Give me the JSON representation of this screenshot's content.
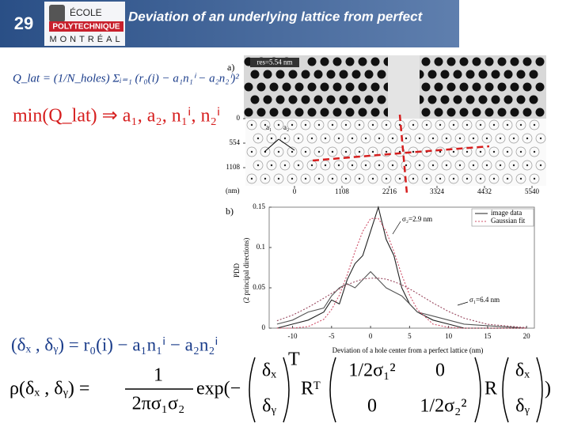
{
  "header": {
    "slide_number": "29",
    "logo": {
      "line1": "ÉCOLE",
      "line2": "POLYTECHNIQUE",
      "line3": "MONTRÉAL"
    },
    "title": "Deviation of an underlying lattice from perfect"
  },
  "equations": {
    "q_lat": "Q_lat = (1/N_holes) Σᵢ₌₁ (r₀(i) − a₁n₁ⁱ − a₂n₂ⁱ)²",
    "minimize": "min(Q_lat) ⇒ a₁, a₂, n₁ⁱ, n₂ⁱ",
    "deviation": "(δₓ , δᵧ) = r₀(i) − a₁n₁ⁱ − a₂n₂ⁱ",
    "rho": {
      "lhs": "ρ(δₓ , δᵧ) =",
      "numerator": "1",
      "denominator": "2πσ₁σ₂",
      "exp": "exp(−",
      "vec_top": "δₓ",
      "vec_bottom": "δᵧ",
      "transpose": "T",
      "r_transpose": "Rᵀ",
      "m11": "1/2σ₁²",
      "m12": "0",
      "m21": "0",
      "m22": "1/2σ₂²",
      "r": "R",
      "close": ")"
    }
  },
  "figure_a": {
    "label": "a)",
    "resolution": "res=5.54 nm",
    "vector_labels": [
      "a₁",
      "a₂"
    ],
    "y_unit": "(nm)",
    "yticks": [
      0,
      554,
      1108
    ],
    "xticks": [
      0,
      1108,
      2216,
      3324,
      4432,
      5540
    ]
  },
  "figure_b": {
    "label": "b)",
    "ylabel": "PDD",
    "ylabel2": "(2 principal directions)",
    "xlabel": "Deviation of a hole center from a perfect lattice (nm)",
    "legend": [
      "image data",
      "Gaussian fit"
    ],
    "annotations": [
      "σ₂=2.9 nm",
      "σ₁=6.4 nm"
    ],
    "xlim": [
      -13,
      21
    ],
    "ylim": [
      0,
      0.15
    ],
    "xticks": [
      -10,
      -5,
      0,
      5,
      10,
      15,
      20
    ],
    "yticks": [
      0,
      0.05,
      0.1,
      0.15
    ],
    "x": [
      -12,
      -10,
      -8,
      -6,
      -5,
      -4,
      -3,
      -2,
      -1,
      0,
      1,
      2,
      3,
      4,
      5,
      6,
      8,
      10,
      12,
      15,
      20
    ],
    "series": [
      {
        "color": "#222222",
        "dash": false,
        "values": [
          0,
          0.005,
          0.01,
          0.02,
          0.035,
          0.03,
          0.06,
          0.08,
          0.09,
          0.12,
          0.15,
          0.11,
          0.09,
          0.05,
          0.03,
          0.02,
          0.01,
          0.005,
          0,
          0,
          0
        ]
      },
      {
        "color": "#555555",
        "dash": false,
        "values": [
          0.005,
          0.01,
          0.02,
          0.025,
          0.04,
          0.05,
          0.055,
          0.05,
          0.06,
          0.07,
          0.06,
          0.05,
          0.045,
          0.04,
          0.03,
          0.02,
          0.015,
          0.01,
          0.005,
          0.003,
          0
        ]
      },
      {
        "color": "#d0506a",
        "dash": true,
        "values": [
          0,
          0,
          0.002,
          0.011,
          0.023,
          0.041,
          0.066,
          0.095,
          0.12,
          0.136,
          0.136,
          0.12,
          0.095,
          0.066,
          0.041,
          0.023,
          0.005,
          0.001,
          0,
          0,
          0
        ]
      },
      {
        "color": "#9a4a60",
        "dash": true,
        "values": [
          0.0092,
          0.0162,
          0.0258,
          0.0372,
          0.043,
          0.0487,
          0.0537,
          0.0576,
          0.0608,
          0.062,
          0.062,
          0.0608,
          0.0576,
          0.0537,
          0.0487,
          0.043,
          0.0313,
          0.0207,
          0.0124,
          0.0048,
          0.0006
        ]
      }
    ]
  }
}
